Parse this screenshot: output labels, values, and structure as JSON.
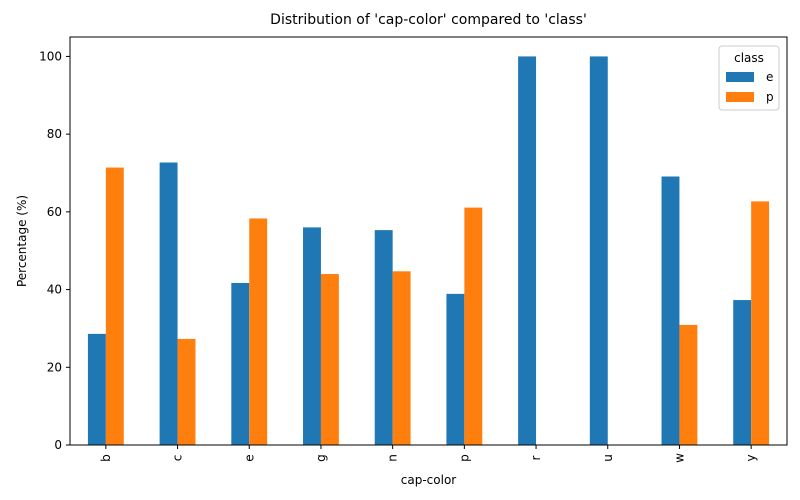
{
  "chart_data": {
    "type": "bar",
    "title": "Distribution of 'cap-color' compared to 'class'",
    "xlabel": "cap-color",
    "ylabel": "Percentage (%)",
    "ylim": [
      0,
      105
    ],
    "yticks": [
      0,
      20,
      40,
      60,
      80,
      100
    ],
    "grid": false,
    "legend": {
      "title": "class",
      "position": "top-right"
    },
    "categories": [
      "b",
      "c",
      "e",
      "g",
      "n",
      "p",
      "r",
      "u",
      "w",
      "y"
    ],
    "series": [
      {
        "name": "e",
        "color": "#1f77b4",
        "values": [
          28.6,
          72.7,
          41.7,
          56.0,
          55.3,
          38.9,
          100.0,
          100.0,
          69.1,
          37.3
        ]
      },
      {
        "name": "p",
        "color": "#ff7f0e",
        "values": [
          71.4,
          27.3,
          58.3,
          44.0,
          44.7,
          61.1,
          0.0,
          0.0,
          30.9,
          62.7
        ]
      }
    ]
  }
}
